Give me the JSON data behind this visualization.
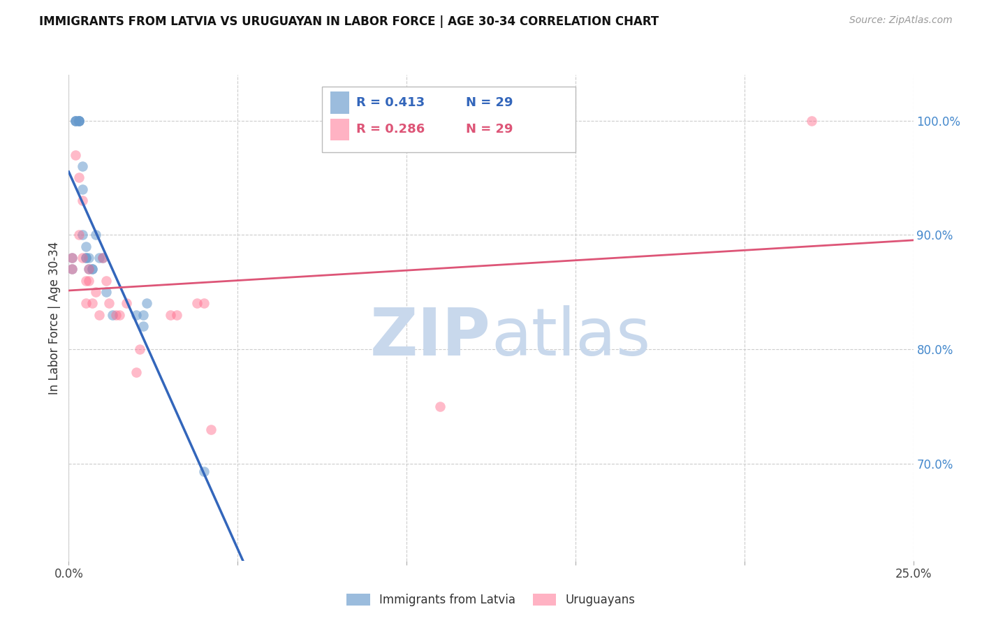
{
  "title": "IMMIGRANTS FROM LATVIA VS URUGUAYAN IN LABOR FORCE | AGE 30-34 CORRELATION CHART",
  "source": "Source: ZipAtlas.com",
  "ylabel": "In Labor Force | Age 30-34",
  "xlim": [
    0.0,
    0.25
  ],
  "ylim": [
    0.615,
    1.04
  ],
  "xtick_positions": [
    0.0,
    0.05,
    0.1,
    0.15,
    0.2,
    0.25
  ],
  "xticklabels": [
    "0.0%",
    "",
    "",
    "",
    "",
    "25.0%"
  ],
  "yticks_right": [
    0.7,
    0.8,
    0.9,
    1.0
  ],
  "ytick_labels_right": [
    "70.0%",
    "80.0%",
    "90.0%",
    "100.0%"
  ],
  "blue_color": "#6699CC",
  "pink_color": "#FF6688",
  "blue_line_color": "#3366BB",
  "pink_line_color": "#DD5577",
  "legend_R_blue": "0.413",
  "legend_N_blue": "29",
  "legend_R_pink": "0.286",
  "legend_N_pink": "29",
  "legend_label_blue": "Immigrants from Latvia",
  "legend_label_pink": "Uruguayans",
  "watermark_zip": "ZIP",
  "watermark_atlas": "atlas",
  "watermark_color_zip": "#C8D8EC",
  "watermark_color_atlas": "#C8D8EC",
  "blue_x": [
    0.001,
    0.001,
    0.002,
    0.002,
    0.002,
    0.003,
    0.003,
    0.003,
    0.003,
    0.004,
    0.004,
    0.004,
    0.005,
    0.005,
    0.005,
    0.006,
    0.006,
    0.007,
    0.007,
    0.008,
    0.009,
    0.01,
    0.011,
    0.013,
    0.02,
    0.022,
    0.022,
    0.023,
    0.04
  ],
  "blue_y": [
    0.88,
    0.87,
    1.0,
    1.0,
    1.0,
    1.0,
    1.0,
    1.0,
    1.0,
    0.96,
    0.94,
    0.9,
    0.89,
    0.88,
    0.88,
    0.88,
    0.87,
    0.87,
    0.87,
    0.9,
    0.88,
    0.88,
    0.85,
    0.83,
    0.83,
    0.82,
    0.83,
    0.84,
    0.693
  ],
  "pink_x": [
    0.001,
    0.001,
    0.002,
    0.003,
    0.003,
    0.004,
    0.004,
    0.005,
    0.005,
    0.006,
    0.006,
    0.007,
    0.008,
    0.009,
    0.01,
    0.011,
    0.012,
    0.014,
    0.015,
    0.017,
    0.02,
    0.021,
    0.03,
    0.032,
    0.038,
    0.04,
    0.042,
    0.11,
    0.22
  ],
  "pink_y": [
    0.88,
    0.87,
    0.97,
    0.95,
    0.9,
    0.93,
    0.88,
    0.86,
    0.84,
    0.87,
    0.86,
    0.84,
    0.85,
    0.83,
    0.88,
    0.86,
    0.84,
    0.83,
    0.83,
    0.84,
    0.78,
    0.8,
    0.83,
    0.83,
    0.84,
    0.84,
    0.73,
    0.75,
    1.0
  ],
  "background_color": "#FFFFFF",
  "grid_color": "#CCCCCC"
}
